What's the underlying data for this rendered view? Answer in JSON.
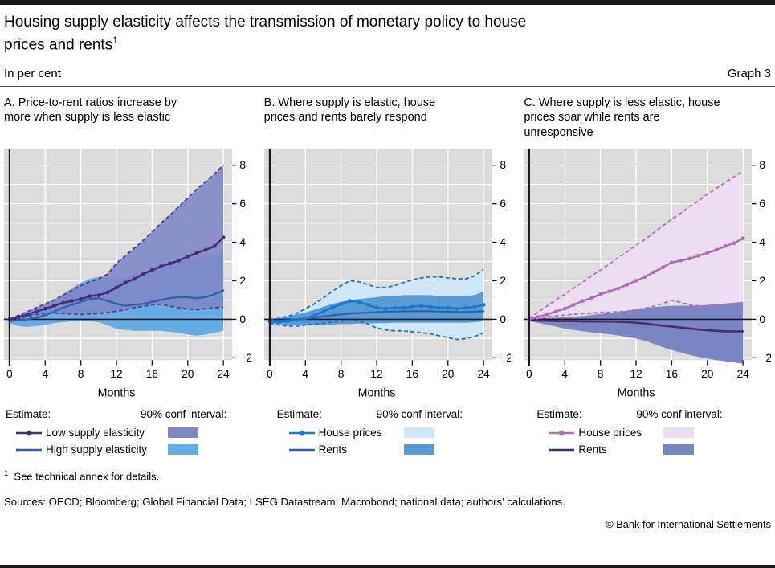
{
  "page": {
    "title_line1": "Housing supply elasticity affects the transmission of monetary policy to house",
    "title_line2": "prices and rents",
    "title_sup": "1",
    "unit_label": "In per cent",
    "graph_label": "Graph 3",
    "footnote_sup": "1",
    "footnote_text": "See technical annex for details.",
    "sources": "Sources: OECD; Bloomberg; Global Financial Data; LSEG Datastream; Macrobond; national data; authors’ calculations.",
    "copyright": "© Bank for International Settlements"
  },
  "colors": {
    "plot_bg": "#dcdcdc",
    "gridline": "#ffffff",
    "axis": "#1a1a1a",
    "purple_band": "#7e88c6",
    "blue_band": "#66ade5",
    "pale_blue_band": "#cfe7f8",
    "mid_blue_band": "#5b9bd5",
    "pale_pink_band": "#ecdef0",
    "blue_purple_band": "#7a86c3",
    "dark_purple_line": "#4e2a7e",
    "purple_dash": "#5e3c90",
    "blue_line": "#2d62ac",
    "bright_blue_line": "#1878cf",
    "orchid_line": "#b36cb8",
    "pink_dash": "#c06ab8",
    "very_dark_purple_line": "#4b2a70"
  },
  "chart_data": [
    {
      "id": "A",
      "type": "line",
      "title_lines": [
        "A. Price-to-rent ratios increase by",
        "more when supply is less elastic"
      ],
      "xlabel": "Months",
      "x_ticks": [
        0,
        4,
        8,
        12,
        16,
        20,
        24
      ],
      "y_ticks": [
        -2,
        0,
        2,
        4,
        6,
        8
      ],
      "ylim": [
        -2.2,
        8.8
      ],
      "xlim": [
        0,
        24
      ],
      "x": [
        0,
        1,
        2,
        3,
        4,
        5,
        6,
        7,
        8,
        9,
        10,
        11,
        12,
        13,
        14,
        15,
        16,
        17,
        18,
        19,
        20,
        21,
        22,
        23,
        24
      ],
      "bands": [
        {
          "name": "high-supply-elasticity-90ci",
          "fill": "#66ade5",
          "opacity": 1,
          "border": null,
          "upper": [
            0.05,
            0.15,
            0.3,
            0.5,
            0.7,
            1.0,
            1.3,
            1.6,
            1.9,
            2.1,
            2.2,
            2.15,
            2.1,
            2.15,
            2.3,
            2.45,
            2.6,
            2.75,
            2.9,
            3.0,
            3.1,
            3.2,
            3.25,
            3.35,
            3.45
          ],
          "lower": [
            -0.2,
            -0.35,
            -0.4,
            -0.35,
            -0.3,
            -0.2,
            -0.15,
            -0.1,
            -0.1,
            -0.1,
            -0.15,
            -0.3,
            -0.5,
            -0.55,
            -0.6,
            -0.6,
            -0.6,
            -0.6,
            -0.65,
            -0.7,
            -0.8,
            -0.85,
            -0.8,
            -0.7,
            -0.6
          ]
        },
        {
          "name": "low-supply-elasticity-90ci",
          "fill": "#7e88c6",
          "opacity": 0.9,
          "border": "#5e3c90",
          "upper": [
            0.05,
            0.2,
            0.4,
            0.6,
            0.8,
            1.0,
            1.25,
            1.5,
            1.75,
            1.95,
            2.1,
            2.35,
            2.9,
            3.3,
            3.7,
            4.1,
            4.55,
            5.0,
            5.4,
            5.85,
            6.3,
            6.75,
            7.15,
            7.55,
            8.0
          ],
          "lower": [
            -0.05,
            0.05,
            0.15,
            0.25,
            0.3,
            0.32,
            0.3,
            0.28,
            0.25,
            0.28,
            0.3,
            0.35,
            0.42,
            0.5,
            0.6,
            0.68,
            0.75,
            0.78,
            0.68,
            0.6,
            0.52,
            0.5,
            0.55,
            0.6,
            0.62
          ]
        }
      ],
      "series": [
        {
          "name": "High supply elasticity",
          "color": "#2d62ac",
          "width": 2.4,
          "markers": false,
          "values": [
            -0.1,
            -0.05,
            0.0,
            0.1,
            0.2,
            0.4,
            0.6,
            0.75,
            0.9,
            1.05,
            1.1,
            0.95,
            0.8,
            0.7,
            0.75,
            0.8,
            0.9,
            1.0,
            1.1,
            1.15,
            1.15,
            1.1,
            1.15,
            1.3,
            1.5
          ]
        },
        {
          "name": "Low supply elasticity",
          "color": "#4e2a7e",
          "width": 2.6,
          "markers": true,
          "values": [
            0.0,
            0.12,
            0.25,
            0.4,
            0.55,
            0.7,
            0.85,
            0.95,
            1.05,
            1.2,
            1.25,
            1.4,
            1.65,
            1.9,
            2.1,
            2.35,
            2.55,
            2.75,
            2.9,
            3.05,
            3.25,
            3.45,
            3.6,
            3.8,
            4.25
          ]
        }
      ],
      "legend": {
        "estimate_label": "Estimate:",
        "interval_label": "90% conf interval:",
        "rows": [
          {
            "label": "Low supply elasticity",
            "line_color": "#4e2a7e",
            "marker": true,
            "swatch": "#7e88c6"
          },
          {
            "label": "High supply elasticity",
            "line_color": "#2d62ac",
            "marker": false,
            "swatch": "#66ade5"
          }
        ]
      }
    },
    {
      "id": "B",
      "type": "line",
      "title_lines": [
        "B. Where supply is elastic, house",
        "prices and rents barely respond"
      ],
      "xlabel": "Months",
      "x_ticks": [
        0,
        4,
        8,
        12,
        16,
        20,
        24
      ],
      "y_ticks": [
        -2,
        0,
        2,
        4,
        6,
        8
      ],
      "ylim": [
        -2.2,
        8.8
      ],
      "xlim": [
        0,
        24
      ],
      "x": [
        0,
        1,
        2,
        3,
        4,
        5,
        6,
        7,
        8,
        9,
        10,
        11,
        12,
        13,
        14,
        15,
        16,
        17,
        18,
        19,
        20,
        21,
        22,
        23,
        24
      ],
      "bands": [
        {
          "name": "house-prices-90ci",
          "fill": "#cfe7f8",
          "opacity": 1,
          "border": "#1878cf",
          "upper": [
            0.0,
            0.05,
            0.15,
            0.3,
            0.55,
            0.8,
            1.1,
            1.45,
            1.75,
            2.0,
            1.95,
            1.8,
            1.65,
            1.65,
            1.75,
            1.9,
            2.05,
            2.15,
            2.2,
            2.2,
            2.15,
            2.1,
            2.1,
            2.25,
            2.6
          ],
          "lower": [
            -0.2,
            -0.3,
            -0.35,
            -0.35,
            -0.3,
            -0.25,
            -0.2,
            -0.15,
            -0.1,
            -0.05,
            -0.1,
            -0.25,
            -0.45,
            -0.55,
            -0.6,
            -0.6,
            -0.65,
            -0.7,
            -0.75,
            -0.85,
            -0.95,
            -1.05,
            -1.0,
            -0.9,
            -0.7
          ]
        },
        {
          "name": "rents-90ci",
          "fill": "#5b9bd5",
          "opacity": 1,
          "border": null,
          "upper": [
            0.0,
            0.05,
            0.15,
            0.25,
            0.35,
            0.5,
            0.65,
            0.8,
            0.9,
            1.0,
            1.05,
            1.1,
            1.15,
            1.2,
            1.2,
            1.25,
            1.25,
            1.25,
            1.25,
            1.2,
            1.2,
            1.2,
            1.2,
            1.25,
            1.45
          ],
          "lower": [
            -0.2,
            -0.25,
            -0.3,
            -0.3,
            -0.3,
            -0.3,
            -0.3,
            -0.28,
            -0.25,
            -0.25,
            -0.22,
            -0.22,
            -0.2,
            -0.2,
            -0.18,
            -0.18,
            -0.18,
            -0.18,
            -0.18,
            -0.18,
            -0.18,
            -0.18,
            -0.18,
            -0.15,
            -0.1
          ]
        }
      ],
      "series": [
        {
          "name": "Rents",
          "color": "#2d62ac",
          "width": 2.4,
          "markers": false,
          "values": [
            -0.1,
            -0.08,
            -0.05,
            0.0,
            0.05,
            0.1,
            0.15,
            0.2,
            0.25,
            0.3,
            0.32,
            0.35,
            0.37,
            0.4,
            0.4,
            0.42,
            0.42,
            0.42,
            0.42,
            0.4,
            0.4,
            0.38,
            0.38,
            0.4,
            0.42
          ]
        },
        {
          "name": "House prices",
          "color": "#1878cf",
          "width": 2.6,
          "markers": true,
          "values": [
            -0.1,
            -0.15,
            -0.1,
            -0.05,
            0.05,
            0.2,
            0.4,
            0.6,
            0.8,
            0.95,
            0.9,
            0.75,
            0.6,
            0.55,
            0.6,
            0.6,
            0.65,
            0.7,
            0.65,
            0.6,
            0.6,
            0.55,
            0.6,
            0.65,
            0.75
          ]
        }
      ],
      "legend": {
        "estimate_label": "Estimate:",
        "interval_label": "90% conf interval:",
        "rows": [
          {
            "label": "House prices",
            "line_color": "#1878cf",
            "marker": true,
            "swatch": "#cfe7f8"
          },
          {
            "label": "Rents",
            "line_color": "#2d62ac",
            "marker": false,
            "swatch": "#5b9bd5"
          }
        ]
      }
    },
    {
      "id": "C",
      "type": "line",
      "title_lines": [
        "C. Where supply is less elastic, house",
        "prices soar while rents are",
        "unresponsive"
      ],
      "xlabel": "Months",
      "x_ticks": [
        0,
        4,
        8,
        12,
        16,
        20,
        24
      ],
      "y_ticks": [
        -2,
        0,
        2,
        4,
        6,
        8
      ],
      "ylim": [
        -2.2,
        8.8
      ],
      "xlim": [
        0,
        24
      ],
      "x": [
        0,
        1,
        2,
        3,
        4,
        5,
        6,
        7,
        8,
        9,
        10,
        11,
        12,
        13,
        14,
        15,
        16,
        17,
        18,
        19,
        20,
        21,
        22,
        23,
        24
      ],
      "bands": [
        {
          "name": "house-prices-90ci",
          "fill": "#ecdef0",
          "opacity": 1,
          "border": "#c06ab8",
          "upper": [
            0.05,
            0.37,
            0.69,
            1.0,
            1.3,
            1.62,
            1.93,
            2.25,
            2.55,
            2.87,
            3.2,
            3.5,
            3.85,
            4.15,
            4.5,
            4.85,
            5.2,
            5.5,
            5.85,
            6.15,
            6.5,
            6.8,
            7.1,
            7.4,
            7.7
          ],
          "lower": [
            -0.05,
            0.05,
            0.12,
            0.18,
            0.22,
            0.27,
            0.3,
            0.32,
            0.35,
            0.37,
            0.4,
            0.42,
            0.5,
            0.58,
            0.68,
            0.82,
            0.98,
            0.88,
            0.75,
            0.7,
            0.68,
            0.72,
            0.78,
            0.8,
            0.82
          ]
        },
        {
          "name": "rents-90ci",
          "fill": "#7a86c3",
          "opacity": 1,
          "border": null,
          "upper": [
            0.0,
            0.03,
            0.06,
            0.08,
            0.1,
            0.13,
            0.17,
            0.22,
            0.28,
            0.33,
            0.38,
            0.45,
            0.52,
            0.58,
            0.63,
            0.67,
            0.7,
            0.7,
            0.7,
            0.72,
            0.75,
            0.78,
            0.82,
            0.86,
            0.9
          ],
          "lower": [
            -0.1,
            -0.18,
            -0.28,
            -0.38,
            -0.48,
            -0.55,
            -0.62,
            -0.68,
            -0.73,
            -0.78,
            -0.84,
            -0.92,
            -1.0,
            -1.12,
            -1.28,
            -1.45,
            -1.6,
            -1.72,
            -1.85,
            -1.95,
            -2.05,
            -2.12,
            -2.18,
            -2.25,
            -2.3
          ]
        }
      ],
      "series": [
        {
          "name": "Rents",
          "color": "#4b2a70",
          "width": 2.6,
          "markers": false,
          "values": [
            -0.05,
            -0.07,
            -0.08,
            -0.09,
            -0.1,
            -0.1,
            -0.11,
            -0.11,
            -0.12,
            -0.12,
            -0.13,
            -0.15,
            -0.18,
            -0.22,
            -0.28,
            -0.33,
            -0.38,
            -0.43,
            -0.48,
            -0.53,
            -0.57,
            -0.6,
            -0.62,
            -0.63,
            -0.63
          ]
        },
        {
          "name": "House prices",
          "color": "#b36cb8",
          "width": 2.6,
          "markers": true,
          "values": [
            0.0,
            0.12,
            0.25,
            0.4,
            0.55,
            0.75,
            0.95,
            1.1,
            1.3,
            1.45,
            1.6,
            1.8,
            2.0,
            2.2,
            2.45,
            2.7,
            2.95,
            3.05,
            3.15,
            3.3,
            3.45,
            3.6,
            3.8,
            3.95,
            4.2
          ]
        }
      ],
      "legend": {
        "estimate_label": "Estimate:",
        "interval_label": "90% conf interval:",
        "rows": [
          {
            "label": "House prices",
            "line_color": "#b36cb8",
            "marker": true,
            "swatch": "#ecdef0"
          },
          {
            "label": "Rents",
            "line_color": "#4b2a70",
            "marker": false,
            "swatch": "#7a86c3"
          }
        ]
      }
    }
  ]
}
